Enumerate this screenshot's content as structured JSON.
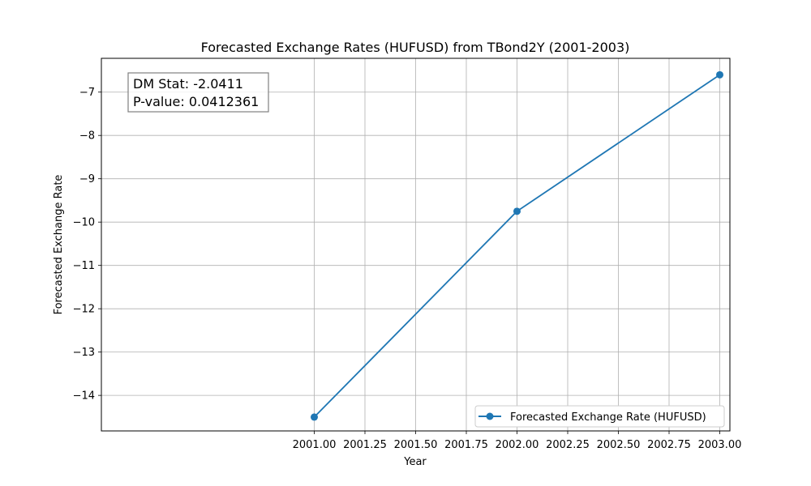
{
  "chart_data": {
    "type": "line",
    "title": "Forecasted Exchange Rates (HUFUSD) from TBond2Y (2001-2003)",
    "xlabel": "Year",
    "ylabel": "Forecasted Exchange Rate",
    "xlim": [
      1999.95,
      2003.05
    ],
    "ylim": [
      -14.82,
      -6.22
    ],
    "xticks": [
      2001.0,
      2001.25,
      2001.5,
      2001.75,
      2002.0,
      2002.25,
      2002.5,
      2002.75,
      2003.0
    ],
    "xtick_labels": [
      "2001.00",
      "2001.25",
      "2001.50",
      "2001.75",
      "2002.00",
      "2002.25",
      "2002.50",
      "2002.75",
      "2003.00"
    ],
    "yticks": [
      -14,
      -13,
      -12,
      -11,
      -10,
      -9,
      -8,
      -7
    ],
    "ytick_labels": [
      "−14",
      "−13",
      "−12",
      "−11",
      "−10",
      "−9",
      "−8",
      "−7"
    ],
    "grid": true,
    "legend_position": "lower-right",
    "series": [
      {
        "name": "Forecasted Exchange Rate (HUFUSD)",
        "color": "#1f77b4",
        "marker": "circle",
        "x": [
          2001,
          2002,
          2003
        ],
        "y": [
          -14.5,
          -9.75,
          -6.6
        ]
      }
    ],
    "annotation": {
      "position": "top-left",
      "lines": [
        "DM Stat: -2.0411",
        "P-value: 0.0412361"
      ]
    }
  }
}
